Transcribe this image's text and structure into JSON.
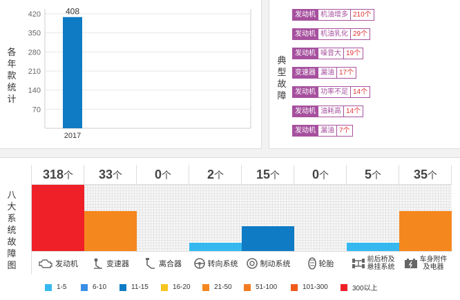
{
  "year_chart": {
    "ylabel": "各年款统计",
    "ticks": [
      "420",
      "350",
      "280",
      "210",
      "140",
      "70"
    ],
    "chart_data": {
      "type": "bar",
      "categories": [
        "2017"
      ],
      "values": [
        408
      ],
      "ylim": [
        0,
        420
      ],
      "ylabel": "各年款统计"
    }
  },
  "faults": {
    "label": "典型故障",
    "items": [
      {
        "cat": "发动机",
        "desc": "机油增多",
        "count": "210个"
      },
      {
        "cat": "发动机",
        "desc": "机油乳化",
        "count": "29个"
      },
      {
        "cat": "发动机",
        "desc": "噪音大",
        "count": "19个"
      },
      {
        "cat": "变速器",
        "desc": "漏油",
        "count": "17个"
      },
      {
        "cat": "发动机",
        "desc": "功率不足",
        "count": "14个"
      },
      {
        "cat": "发动机",
        "desc": "油耗高",
        "count": "14个"
      },
      {
        "cat": "发动机",
        "desc": "漏油",
        "count": "7个"
      }
    ]
  },
  "systems": {
    "label": "八大系统故障图",
    "unit": "个",
    "items": [
      {
        "name": "发动机",
        "count": "318",
        "level": 1.0,
        "color": "#ef2027",
        "icon": "engine-icon"
      },
      {
        "name": "变速器",
        "count": "33",
        "level": 0.6,
        "color": "#f5871f",
        "icon": "gear-shifter-icon"
      },
      {
        "name": "离合器",
        "count": "0",
        "level": 0,
        "color": "#f7f7f7",
        "icon": "clutch-pedal-icon"
      },
      {
        "name": "转向系统",
        "count": "2",
        "level": 0.12,
        "color": "#35b8f0",
        "icon": "steering-wheel-icon"
      },
      {
        "name": "制动系统",
        "count": "15",
        "level": 0.37,
        "color": "#0f7bc4",
        "icon": "brake-disc-icon"
      },
      {
        "name": "轮胎",
        "count": "0",
        "level": 0,
        "color": "#f7f7f7",
        "icon": "tire-icon"
      },
      {
        "name": "前后桥及悬挂系统",
        "count": "5",
        "level": 0.12,
        "color": "#35b8f0",
        "icon": "axle-icon"
      },
      {
        "name": "车身附件及电器",
        "count": "35",
        "level": 0.6,
        "color": "#f5871f",
        "icon": "battery-icon"
      }
    ]
  },
  "legend": [
    {
      "label": "1-5",
      "color": "#35b8f0"
    },
    {
      "label": "6-10",
      "color": "#3a8ee6"
    },
    {
      "label": "11-15",
      "color": "#0f7bc4"
    },
    {
      "label": "16-20",
      "color": "#f7c51e"
    },
    {
      "label": "21-50",
      "color": "#f5871f"
    },
    {
      "label": "51-100",
      "color": "#f47b20"
    },
    {
      "label": "101-300",
      "color": "#f25a1a"
    },
    {
      "label": "300以上",
      "color": "#ef2027"
    }
  ]
}
